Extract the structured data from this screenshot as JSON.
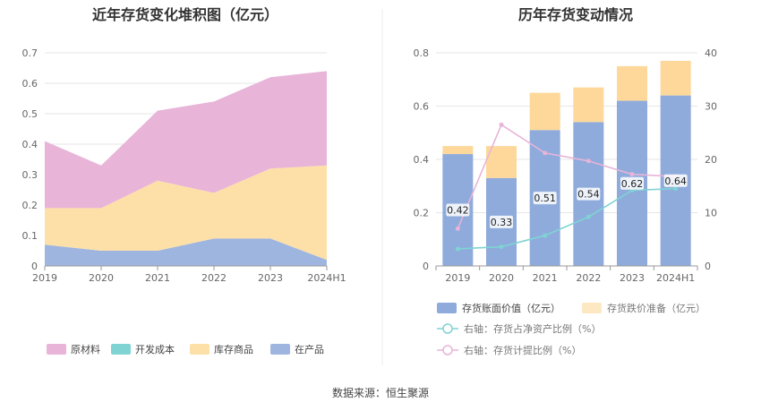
{
  "source_text": "数据来源：恒生聚源",
  "chart_data": [
    {
      "type": "area",
      "stacked": true,
      "title": "近年存货变化堆积图（亿元）",
      "categories": [
        "2019",
        "2020",
        "2021",
        "2022",
        "2023",
        "2024H1"
      ],
      "ylim": [
        0,
        0.7
      ],
      "yticks": [
        "0",
        "0.1",
        "0.2",
        "0.3",
        "0.4",
        "0.5",
        "0.6",
        "0.7"
      ],
      "grid": true,
      "legend_position": "bottom",
      "series": [
        {
          "name": "原材料",
          "color": "#e8b4d8",
          "values": [
            0.22,
            0.14,
            0.23,
            0.3,
            0.3,
            0.31
          ]
        },
        {
          "name": "开发成本",
          "color": "#7fd3d3",
          "values": [
            0,
            0,
            0,
            0,
            0,
            0
          ]
        },
        {
          "name": "库存商品",
          "color": "#fde0a8",
          "values": [
            0.12,
            0.14,
            0.23,
            0.15,
            0.23,
            0.31
          ]
        },
        {
          "name": "在产品",
          "color": "#9eb5e0",
          "values": [
            0.07,
            0.05,
            0.05,
            0.09,
            0.09,
            0.02
          ]
        }
      ],
      "stack_order": [
        "在产品",
        "库存商品",
        "开发成本",
        "原材料"
      ]
    },
    {
      "type": "bar",
      "stacked": true,
      "title": "历年存货变动情况",
      "categories": [
        "2019",
        "2020",
        "2021",
        "2022",
        "2023",
        "2024H1"
      ],
      "ylim": [
        0,
        0.8
      ],
      "yticks": [
        "0",
        "0.2",
        "0.4",
        "0.6",
        "0.8"
      ],
      "y2lim": [
        0,
        40
      ],
      "y2ticks": [
        "0",
        "10",
        "20",
        "30",
        "40"
      ],
      "grid": true,
      "legend_position": "bottom",
      "series": [
        {
          "name": "存货账面价值（亿元）",
          "color": "#8eabdc",
          "axis": "left",
          "kind": "bar",
          "values": [
            0.42,
            0.33,
            0.51,
            0.54,
            0.62,
            0.64
          ],
          "labels": [
            "0.42",
            "0.33",
            "0.51",
            "0.54",
            "0.62",
            "0.64"
          ]
        },
        {
          "name": "存货跌价准备（亿元）",
          "color": "#fdd89a",
          "axis": "left",
          "kind": "bar",
          "values": [
            0.03,
            0.12,
            0.14,
            0.13,
            0.13,
            0.13
          ]
        },
        {
          "name": "右轴：存货占净资产比例（%）",
          "color": "#7fd3d3",
          "axis": "right",
          "kind": "line",
          "values": [
            3.2,
            3.6,
            5.7,
            9.2,
            14.2,
            14.5
          ]
        },
        {
          "name": "右轴：存货计提比例（%）",
          "color": "#e8b4d8",
          "axis": "right",
          "kind": "line",
          "values": [
            7.0,
            26.5,
            21.2,
            19.7,
            17.2,
            16.8
          ]
        }
      ]
    }
  ]
}
